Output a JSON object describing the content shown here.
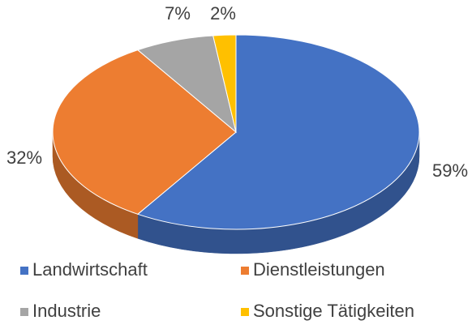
{
  "chart_data": {
    "type": "pie",
    "categories": [
      "Landwirtschaft",
      "Dienstleistungen",
      "Industrie",
      "Sonstige Tätigkeiten"
    ],
    "values": [
      59,
      32,
      7,
      2
    ],
    "value_labels": [
      "59%",
      "32%",
      "7%",
      "2%"
    ],
    "colors": [
      "#4472c4",
      "#ed7d31",
      "#a5a5a5",
      "#ffc000"
    ],
    "legend": "bottom"
  }
}
